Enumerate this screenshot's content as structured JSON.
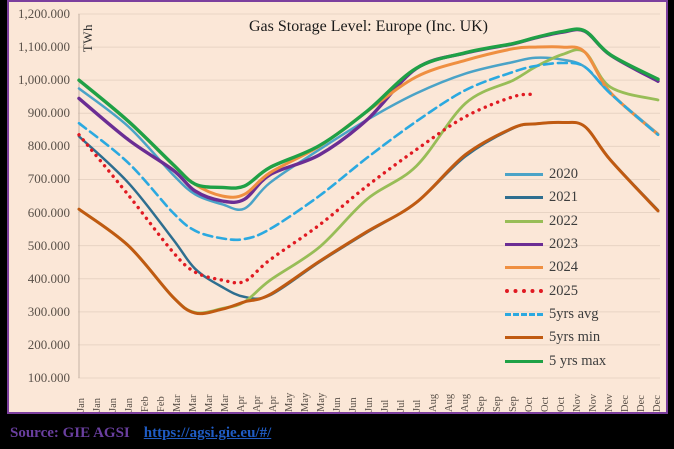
{
  "window": {
    "background": "#000000"
  },
  "chart": {
    "title": "Gas Storage Level: Europe (Inc. UK)",
    "y_axis_unit": "TWh",
    "background": "#FBE7D7",
    "border_color": "#7C3F9E",
    "gridline_color": "#E8D4C4",
    "axis_line_color": "#C5B3A5",
    "source_label": "Source: GIE AGSI",
    "source_link": "https://agsi.gie.eu/#/"
  },
  "chart_data": {
    "type": "line",
    "title": "Gas Storage Level: Europe (Inc. UK)",
    "xlabel": "",
    "ylabel": "TWh",
    "ylim": [
      100,
      1200
    ],
    "grid": true,
    "legend_position": "middle-right",
    "y_ticks": [
      "1,200.000",
      "1,100.000",
      "1,000.000",
      "900.000",
      "800.000",
      "700.000",
      "600.000",
      "500.000",
      "400.000",
      "300.000",
      "200.000",
      "100.000"
    ],
    "x_tick_labels": [
      "Jan",
      "Jan",
      "Jan",
      "Jan",
      "Feb",
      "Feb",
      "Mar",
      "Mar",
      "Mar",
      "Mar",
      "Apr",
      "Apr",
      "Apr",
      "May",
      "May",
      "May",
      "Jun",
      "Jun",
      "Jun",
      "Jul",
      "Jul",
      "Jul",
      "Aug",
      "Aug",
      "Aug",
      "Sep",
      "Sep",
      "Sep",
      "Oct",
      "Oct",
      "Oct",
      "Nov",
      "Nov",
      "Nov",
      "Dec",
      "Dec",
      "Dec"
    ],
    "x_sample_days_of_year": [
      1,
      32,
      60,
      74,
      91,
      105,
      121,
      152,
      182,
      213,
      244,
      274,
      288,
      305,
      319,
      335,
      365
    ],
    "units": "TWh",
    "series": [
      {
        "name": "2020",
        "color": "#4BA3C7",
        "style": "solid",
        "width": 2.5,
        "values": [
          975,
          860,
          715,
          655,
          625,
          612,
          690,
          790,
          880,
          960,
          1020,
          1055,
          1068,
          1062,
          1040,
          960,
          838
        ]
      },
      {
        "name": "2021",
        "color": "#2E6E8F",
        "style": "solid",
        "width": 2.5,
        "values": [
          830,
          690,
          520,
          430,
          375,
          345,
          350,
          450,
          540,
          630,
          770,
          855,
          868,
          872,
          860,
          760,
          607
        ]
      },
      {
        "name": "2022",
        "color": "#98BD57",
        "style": "solid",
        "width": 2.8,
        "values": [
          610,
          500,
          345,
          298,
          310,
          330,
          395,
          495,
          640,
          740,
          930,
          1000,
          1040,
          1078,
          1085,
          979,
          940
        ]
      },
      {
        "name": "2023",
        "color": "#6B2D94",
        "style": "solid",
        "width": 3.4,
        "values": [
          945,
          820,
          729,
          665,
          635,
          640,
          714,
          774,
          880,
          1035,
          1082,
          1110,
          1128,
          1145,
          1148,
          1076,
          997
        ]
      },
      {
        "name": "2024",
        "color": "#EF8F41",
        "style": "solid",
        "width": 3.0,
        "values": [
          1000,
          875,
          745,
          685,
          650,
          655,
          720,
          800,
          905,
          1010,
          1060,
          1095,
          1100,
          1100,
          1085,
          963,
          836
        ]
      },
      {
        "name": "2025",
        "color": "#E01A22",
        "style": "dotted",
        "width": 3.4,
        "values": [
          835,
          653,
          481,
          420,
          396,
          392,
          457,
          562,
          680,
          790,
          890,
          950,
          957,
          null,
          null,
          null,
          null
        ]
      },
      {
        "name": "5yrs avg",
        "color": "#2BA9E0",
        "style": "dashed",
        "width": 2.6,
        "values": [
          870,
          750,
          600,
          545,
          522,
          520,
          550,
          650,
          765,
          875,
          970,
          1025,
          1043,
          1052,
          1040,
          960,
          835
        ]
      },
      {
        "name": "5yrs min",
        "color": "#C05A11",
        "style": "solid",
        "width": 3.0,
        "values": [
          610,
          500,
          345,
          296,
          308,
          330,
          352,
          452,
          542,
          630,
          775,
          856,
          868,
          872,
          860,
          759,
          605
        ]
      },
      {
        "name": "5 yrs max",
        "color": "#1FA146",
        "style": "solid",
        "width": 3.4,
        "values": [
          1000,
          876,
          746,
          686,
          676,
          680,
          736,
          802,
          906,
          1036,
          1083,
          1111,
          1129,
          1147,
          1149,
          1077,
          1003
        ]
      }
    ]
  }
}
